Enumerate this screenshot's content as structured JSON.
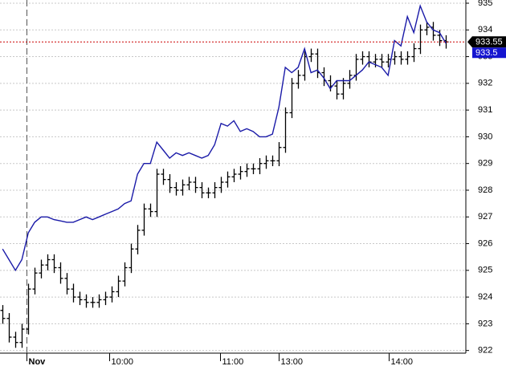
{
  "chart_data": {
    "type": "ohlc",
    "color": "#000000",
    "line_color": "#1a1aa8",
    "last_label_color": "#000000",
    "line_label_color": "#1515d0",
    "ref_line_color": "#cc0000",
    "grid": true,
    "ylim": [
      921.9,
      935.12
    ],
    "yticks": [
      922,
      923,
      924,
      925,
      926,
      927,
      928,
      929,
      930,
      931,
      932,
      933,
      934,
      935
    ],
    "xlim": [
      -0.4,
      72.1
    ],
    "xticks": [
      {
        "value": 3.7,
        "label": "Nov"
      },
      {
        "value": 16.6,
        "label": "10:00"
      },
      {
        "value": 33.9,
        "label": "11:00"
      },
      {
        "value": 43,
        "label": "13:00"
      },
      {
        "value": 60.1,
        "label": "14:00"
      }
    ],
    "open": [
      923.5,
      923.2,
      922.5,
      922.3,
      922.8,
      924.3,
      924.9,
      925.2,
      925.4,
      925.1,
      924.7,
      924.3,
      924.0,
      923.9,
      923.8,
      923.8,
      923.9,
      924.0,
      924.2,
      924.6,
      925.1,
      925.8,
      926.5,
      927.3,
      927.2,
      928.6,
      928.4,
      928.1,
      928.0,
      928.2,
      928.3,
      928.1,
      927.9,
      927.9,
      928.1,
      928.3,
      928.5,
      928.6,
      928.7,
      928.8,
      928.8,
      929.0,
      929.1,
      929.1,
      929.6,
      930.9,
      932.0,
      932.3,
      933.0,
      933.1,
      932.4,
      932.1,
      931.9,
      931.6,
      932.0,
      932.3,
      932.9,
      933.0,
      932.8,
      932.9,
      932.8,
      932.9,
      933.0,
      932.9,
      933.0,
      933.3,
      934.0,
      934.1,
      933.8,
      933.6
    ],
    "high": [
      923.7,
      923.4,
      922.7,
      923.0,
      924.5,
      925.1,
      925.4,
      925.6,
      925.6,
      925.3,
      924.9,
      924.5,
      924.2,
      924.1,
      924.0,
      924.1,
      924.2,
      924.4,
      924.8,
      925.3,
      926.0,
      926.7,
      927.5,
      927.5,
      928.8,
      928.8,
      928.6,
      928.3,
      928.4,
      928.5,
      928.5,
      928.3,
      928.1,
      928.3,
      928.5,
      928.7,
      928.8,
      928.9,
      929.0,
      929.0,
      929.2,
      929.3,
      929.3,
      929.8,
      931.1,
      932.2,
      932.5,
      933.2,
      933.3,
      933.3,
      932.6,
      932.3,
      932.1,
      932.2,
      932.5,
      933.1,
      933.2,
      933.2,
      933.1,
      933.1,
      933.1,
      933.2,
      933.2,
      933.2,
      933.5,
      934.2,
      934.3,
      934.3,
      934.0,
      933.8
    ],
    "low": [
      923.0,
      922.3,
      922.1,
      922.1,
      922.6,
      924.1,
      924.7,
      925.0,
      924.9,
      924.5,
      924.1,
      923.8,
      923.7,
      923.6,
      923.6,
      923.6,
      923.7,
      923.8,
      924.0,
      924.4,
      924.9,
      925.6,
      926.3,
      927.0,
      927.0,
      928.2,
      927.9,
      927.8,
      927.8,
      928.0,
      927.9,
      927.7,
      927.7,
      927.7,
      927.9,
      928.1,
      928.3,
      928.4,
      928.5,
      928.6,
      928.6,
      928.8,
      928.9,
      928.9,
      929.4,
      930.7,
      931.8,
      932.1,
      932.8,
      932.2,
      931.9,
      931.7,
      931.4,
      931.4,
      931.8,
      932.1,
      932.7,
      932.6,
      932.6,
      932.6,
      932.6,
      932.7,
      932.7,
      932.7,
      932.8,
      933.1,
      933.8,
      933.6,
      933.4,
      933.3
    ],
    "close": [
      923.2,
      922.5,
      922.3,
      922.8,
      924.3,
      924.9,
      925.2,
      925.4,
      925.1,
      924.7,
      924.3,
      924.0,
      923.9,
      923.8,
      923.8,
      923.9,
      924.0,
      924.2,
      924.6,
      925.1,
      925.8,
      926.5,
      927.3,
      927.2,
      928.6,
      928.4,
      928.1,
      928.0,
      928.2,
      928.3,
      928.1,
      927.9,
      927.9,
      928.1,
      928.3,
      928.5,
      928.6,
      928.7,
      928.8,
      928.8,
      929.0,
      929.1,
      929.1,
      929.6,
      930.9,
      932.0,
      932.3,
      933.0,
      933.1,
      932.4,
      932.1,
      931.9,
      931.6,
      932.0,
      932.3,
      932.9,
      933.0,
      932.8,
      932.9,
      932.8,
      932.9,
      933.0,
      932.9,
      933.0,
      933.3,
      934.0,
      934.1,
      933.8,
      933.6,
      933.55
    ],
    "line_values": [
      925.8,
      925.4,
      925.0,
      925.4,
      926.4,
      926.8,
      927.0,
      927.0,
      926.9,
      926.85,
      926.8,
      926.8,
      926.9,
      927.0,
      926.9,
      927.0,
      927.1,
      927.2,
      927.3,
      927.5,
      927.6,
      928.6,
      929.0,
      929.0,
      929.8,
      929.5,
      929.2,
      929.4,
      929.3,
      929.4,
      929.3,
      929.2,
      929.3,
      929.7,
      930.5,
      930.4,
      930.6,
      930.2,
      930.3,
      930.2,
      930.0,
      930.0,
      930.1,
      931.1,
      932.6,
      932.4,
      932.6,
      933.3,
      932.4,
      932.5,
      932.2,
      931.8,
      932.1,
      932.1,
      932.1,
      932.3,
      932.5,
      932.8,
      932.7,
      932.6,
      932.3,
      933.6,
      933.4,
      934.5,
      933.9,
      934.9,
      934.3,
      934.0,
      933.9,
      933.5
    ]
  }
}
